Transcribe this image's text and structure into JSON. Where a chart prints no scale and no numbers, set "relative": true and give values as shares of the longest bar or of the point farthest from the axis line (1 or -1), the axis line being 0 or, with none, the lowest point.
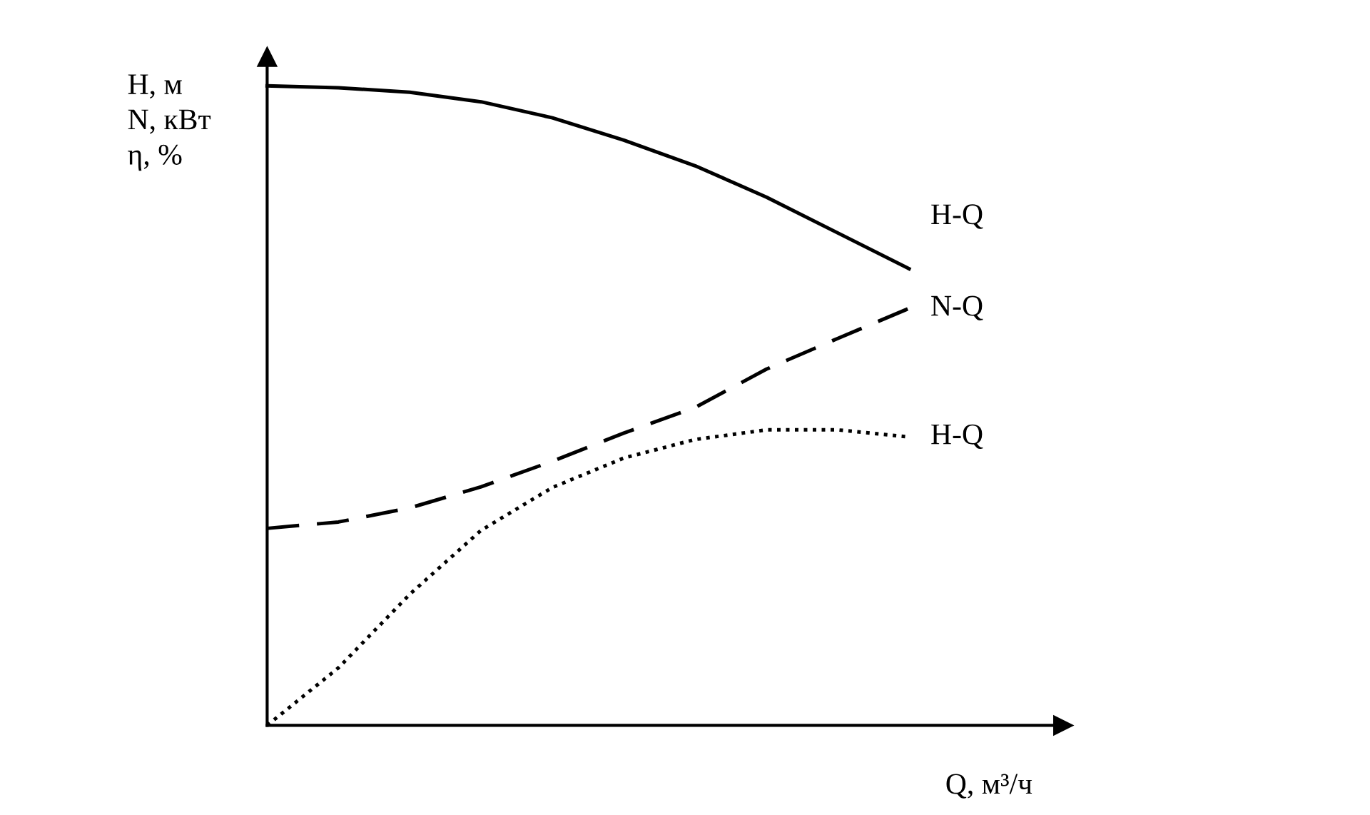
{
  "chart_data": {
    "type": "line",
    "relative": true,
    "ylabel": "H, м\nN, кВт\nη, %",
    "xlabel": "Q, м³/ч",
    "categories": [
      null,
      null,
      null,
      null,
      null,
      null,
      null,
      null,
      null,
      null
    ],
    "series": [
      {
        "name": "H-Q",
        "color": "#000000",
        "line_style": "solid",
        "values": [
          1.0,
          0.997,
          0.99,
          0.975,
          0.95,
          0.915,
          0.875,
          0.826,
          0.77,
          0.714
        ]
      },
      {
        "name": "N-Q",
        "color": "#000000",
        "line_style": "dashed",
        "values": [
          0.308,
          0.318,
          0.34,
          0.373,
          0.413,
          0.457,
          0.497,
          0.557,
          0.605,
          0.652
        ]
      },
      {
        "name": "H-Q",
        "color": "#000000",
        "line_style": "dotted",
        "values": [
          0,
          0.09,
          0.205,
          0.305,
          0.372,
          0.418,
          0.447,
          0.462,
          0.462,
          0.451
        ]
      }
    ]
  }
}
